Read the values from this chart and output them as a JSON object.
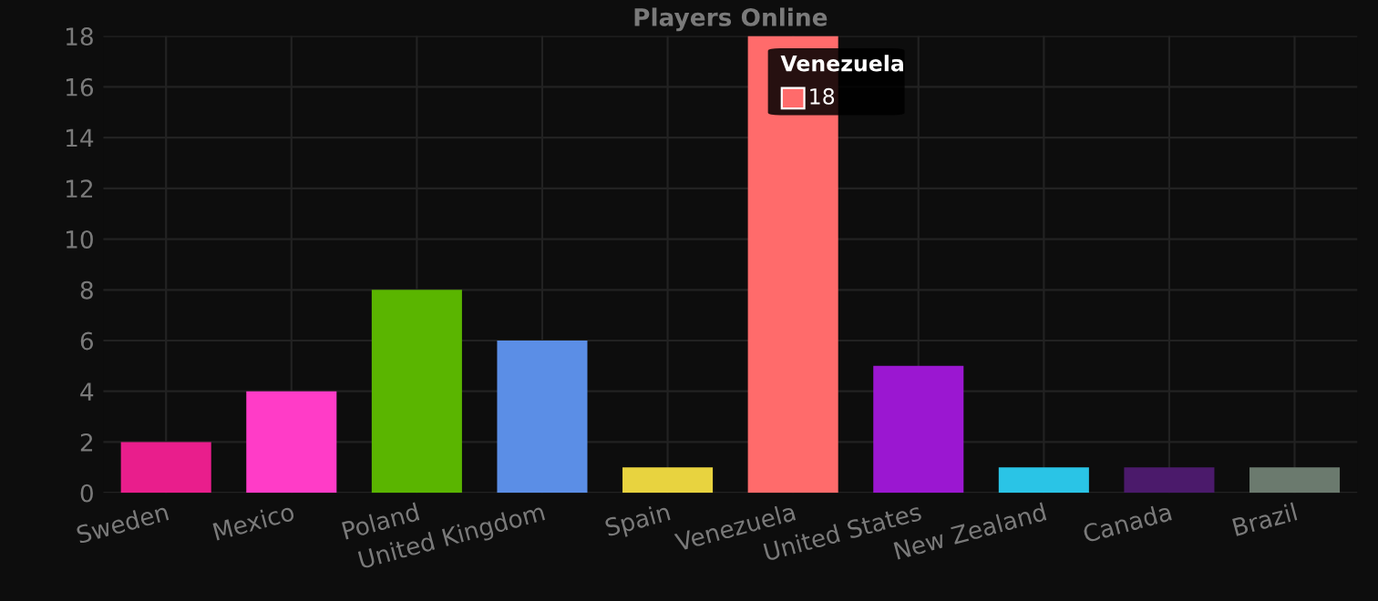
{
  "chart_data": {
    "type": "bar",
    "title": "Players Online",
    "categories": [
      "Sweden",
      "Mexico",
      "Poland",
      "United Kingdom",
      "Spain",
      "Venezuela",
      "United States",
      "New Zealand",
      "Canada",
      "Brazil"
    ],
    "values": [
      2,
      4,
      8,
      6,
      1,
      18,
      5,
      1,
      1,
      1
    ],
    "colors": [
      "#e91e8c",
      "#ff3cc7",
      "#5ab500",
      "#5b8ee6",
      "#e8d33f",
      "#ff6b6b",
      "#9b17d1",
      "#2ac4e6",
      "#4b1a6b",
      "#6b7a6e"
    ],
    "value_labels": [
      null,
      null,
      null,
      null,
      null,
      "18",
      null,
      null,
      null,
      null
    ],
    "ylim": [
      0,
      18
    ],
    "yticks": [
      0,
      2,
      4,
      6,
      8,
      10,
      12,
      14,
      16,
      18
    ],
    "grid": true
  }
}
